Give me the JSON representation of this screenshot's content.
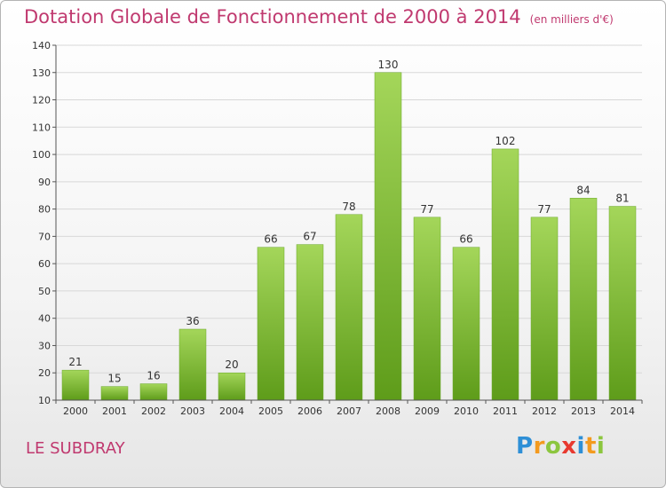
{
  "title": "Dotation Globale de Fonctionnement de 2000 à 2014",
  "unit_note": "(en milliers d'€)",
  "commune": "LE SUBDRAY",
  "logo": {
    "text": "Proxiti",
    "letters": [
      {
        "ch": "P",
        "color": "#2e8fd6"
      },
      {
        "ch": "r",
        "color": "#f39a1e"
      },
      {
        "ch": "o",
        "color": "#8cc63e"
      },
      {
        "ch": "x",
        "color": "#e8392f"
      },
      {
        "ch": "i",
        "color": "#2e8fd6"
      },
      {
        "ch": "t",
        "color": "#f39a1e"
      },
      {
        "ch": "i",
        "color": "#8cc63e"
      }
    ]
  },
  "colors": {
    "bar_top": "#a4d65a",
    "bar_bottom": "#5e9c1a",
    "title": "#c0396f",
    "grid": "#d8d8d8"
  },
  "chart_data": {
    "type": "bar",
    "title": "Dotation Globale de Fonctionnement de 2000 à 2014",
    "xlabel": "",
    "ylabel": "",
    "categories": [
      "2000",
      "2001",
      "2002",
      "2003",
      "2004",
      "2005",
      "2006",
      "2007",
      "2008",
      "2009",
      "2010",
      "2011",
      "2012",
      "2013",
      "2014"
    ],
    "values": [
      21,
      15,
      16,
      36,
      20,
      66,
      67,
      78,
      130,
      77,
      66,
      102,
      77,
      84,
      81
    ],
    "ylim": [
      10,
      140
    ],
    "yticks": [
      10,
      20,
      30,
      40,
      50,
      60,
      70,
      80,
      90,
      100,
      110,
      120,
      130,
      140
    ],
    "grid": true
  }
}
